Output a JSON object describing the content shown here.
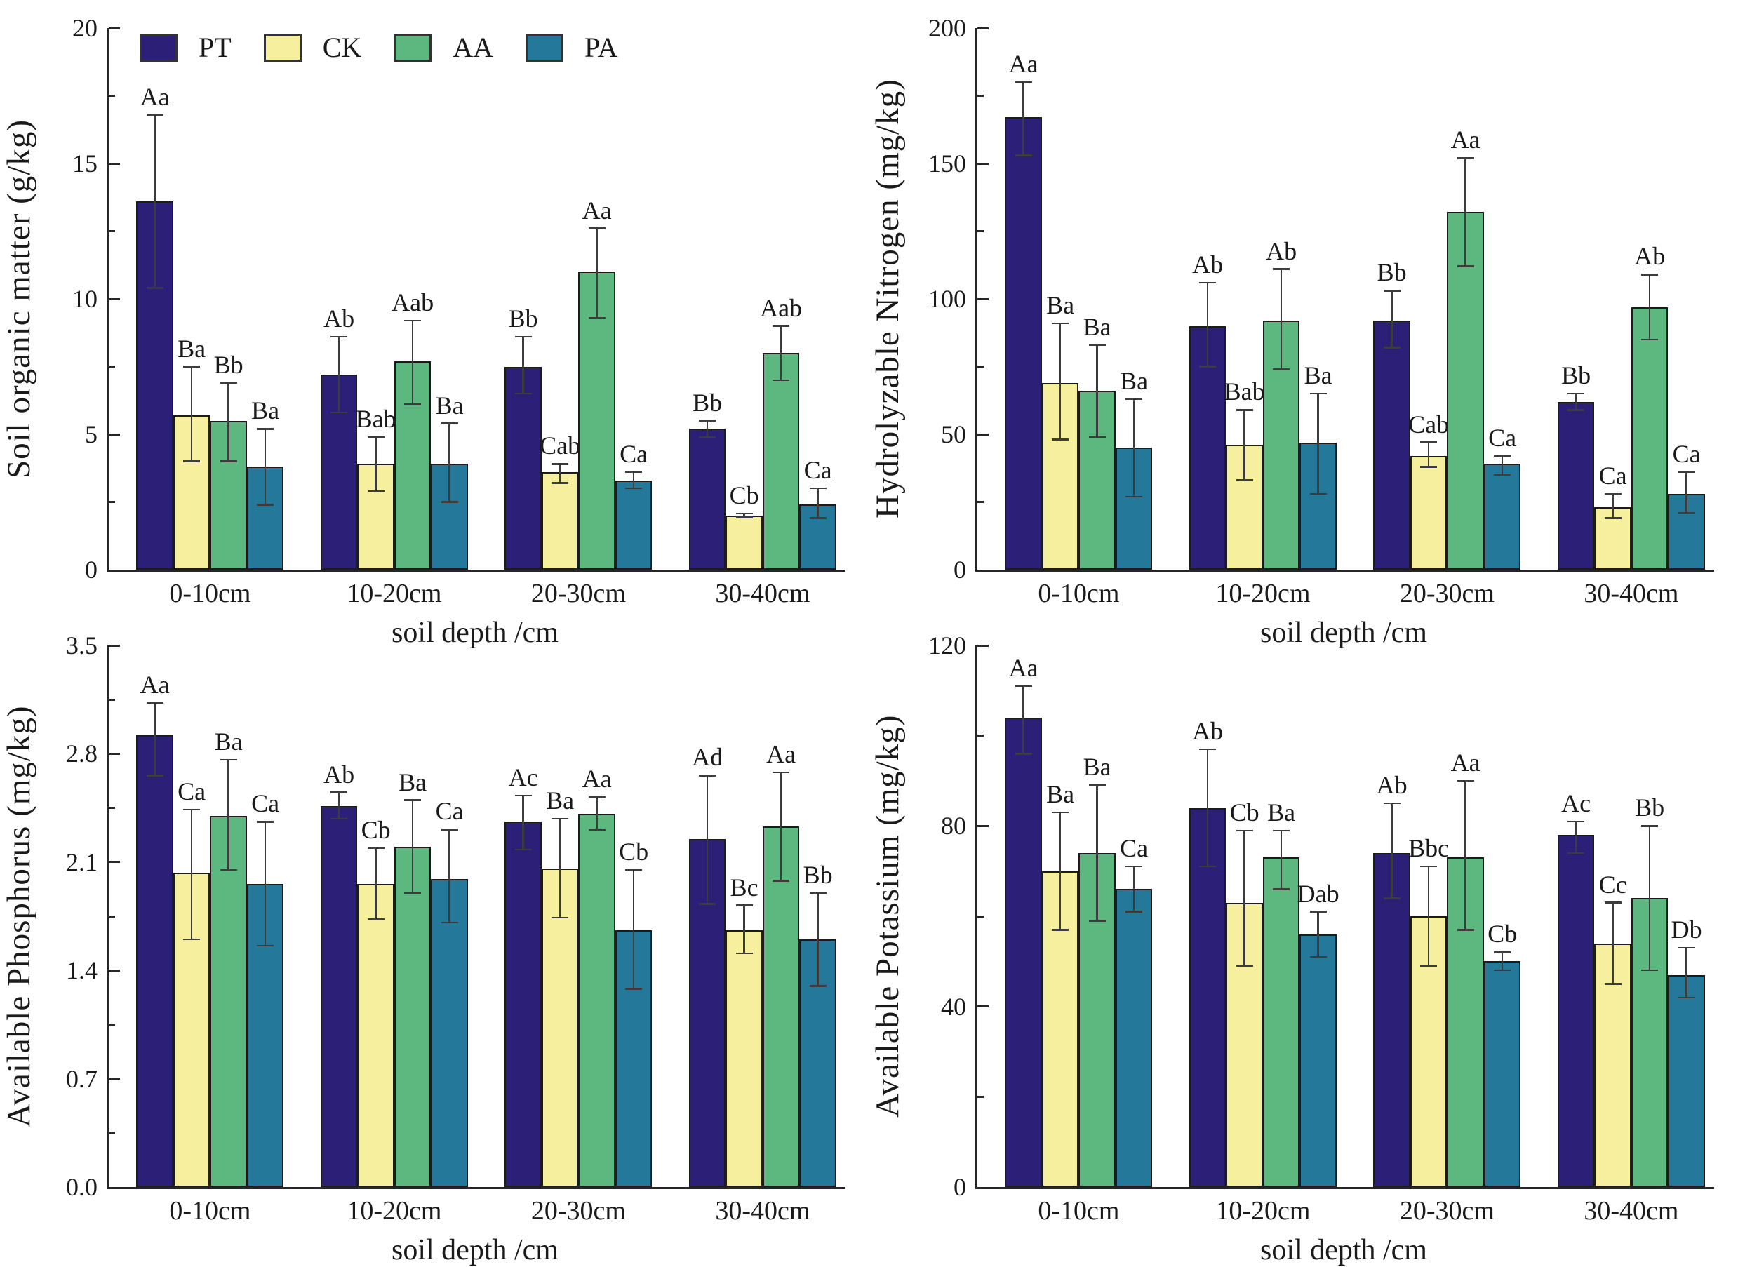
{
  "figure_name": "soil-properties-four-panel-bar-figure",
  "x_axis_title": "soil depth /cm",
  "categories": [
    "0-10cm",
    "10-20cm",
    "20-30cm",
    "30-40cm"
  ],
  "legend": {
    "position": "top-left-of-first-panel",
    "entries": [
      {
        "label": "PT",
        "color": "#2c1f77"
      },
      {
        "label": "CK",
        "color": "#f5ef9e"
      },
      {
        "label": "AA",
        "color": "#5cb87f"
      },
      {
        "label": "PA",
        "color": "#24799a"
      }
    ]
  },
  "chart_data": [
    {
      "type": "bar",
      "ylabel": "Soil organic matter (g/kg)",
      "xlabel": "soil depth /cm",
      "ylim": [
        0,
        20
      ],
      "yticks": [
        "0",
        "5",
        "10",
        "15",
        "20"
      ],
      "ytick_values": [
        0,
        5,
        10,
        15,
        20
      ],
      "grid": false,
      "show_legend": true,
      "categories": [
        "0-10cm",
        "10-20cm",
        "20-30cm",
        "30-40cm"
      ],
      "series": [
        {
          "name": "PT",
          "color": "#2c1f77",
          "values": [
            13.6,
            7.2,
            7.5,
            5.2
          ],
          "err_lo": [
            10.4,
            5.8,
            6.5,
            4.9
          ],
          "err_hi": [
            16.8,
            8.6,
            8.6,
            5.5
          ],
          "sig": [
            "Aa",
            "Ab",
            "Bb",
            "Bb"
          ]
        },
        {
          "name": "CK",
          "color": "#f5ef9e",
          "values": [
            5.7,
            3.9,
            3.6,
            2.0
          ],
          "err_lo": [
            4.0,
            2.9,
            3.2,
            1.93
          ],
          "err_hi": [
            7.5,
            4.9,
            3.9,
            2.07
          ],
          "sig": [
            "Ba",
            "Bab",
            "Cab",
            "Cb"
          ]
        },
        {
          "name": "AA",
          "color": "#5cb87f",
          "values": [
            5.5,
            7.7,
            11.0,
            8.0
          ],
          "err_lo": [
            4.0,
            6.1,
            9.3,
            7.0
          ],
          "err_hi": [
            6.9,
            9.2,
            12.6,
            9.0
          ],
          "sig": [
            "Bb",
            "Aab",
            "Aa",
            "Aab"
          ]
        },
        {
          "name": "PA",
          "color": "#24799a",
          "values": [
            3.8,
            3.9,
            3.3,
            2.4
          ],
          "err_lo": [
            2.4,
            2.5,
            3.0,
            1.9
          ],
          "err_hi": [
            5.2,
            5.4,
            3.6,
            3.0
          ],
          "sig": [
            "Ba",
            "Ba",
            "Ca",
            "Ca"
          ]
        }
      ]
    },
    {
      "type": "bar",
      "ylabel": "Hydrolyzable Nitrogen (mg/kg)",
      "xlabel": "soil depth /cm",
      "ylim": [
        0,
        200
      ],
      "yticks": [
        "0",
        "50",
        "100",
        "150",
        "200"
      ],
      "ytick_values": [
        0,
        50,
        100,
        150,
        200
      ],
      "grid": false,
      "show_legend": false,
      "categories": [
        "0-10cm",
        "10-20cm",
        "20-30cm",
        "30-40cm"
      ],
      "series": [
        {
          "name": "PT",
          "color": "#2c1f77",
          "values": [
            167,
            90,
            92,
            62
          ],
          "err_lo": [
            153,
            75,
            82,
            59
          ],
          "err_hi": [
            180,
            106,
            103,
            65
          ],
          "sig": [
            "Aa",
            "Ab",
            "Bb",
            "Bb"
          ]
        },
        {
          "name": "CK",
          "color": "#f5ef9e",
          "values": [
            69,
            46,
            42,
            23
          ],
          "err_lo": [
            48,
            33,
            38,
            19
          ],
          "err_hi": [
            91,
            59,
            47,
            28
          ],
          "sig": [
            "Ba",
            "Bab",
            "Cab",
            "Ca"
          ]
        },
        {
          "name": "AA",
          "color": "#5cb87f",
          "values": [
            66,
            92,
            132,
            97
          ],
          "err_lo": [
            49,
            74,
            112,
            85
          ],
          "err_hi": [
            83,
            111,
            152,
            109
          ],
          "sig": [
            "Ba",
            "Ab",
            "Aa",
            "Ab"
          ]
        },
        {
          "name": "PA",
          "color": "#24799a",
          "values": [
            45,
            47,
            39,
            28
          ],
          "err_lo": [
            27,
            28,
            35,
            21
          ],
          "err_hi": [
            63,
            65,
            42,
            36
          ],
          "sig": [
            "Ba",
            "Ba",
            "Ca",
            "Ca"
          ]
        }
      ]
    },
    {
      "type": "bar",
      "ylabel": "Available Phosphorus (mg/kg)",
      "xlabel": "soil depth /cm",
      "ylim": [
        0,
        3.5
      ],
      "yticks": [
        "0.0",
        "0.7",
        "1.4",
        "2.1",
        "2.8",
        "3.5"
      ],
      "ytick_values": [
        0,
        0.7,
        1.4,
        2.1,
        2.8,
        3.5
      ],
      "grid": false,
      "show_legend": false,
      "categories": [
        "0-10cm",
        "10-20cm",
        "20-30cm",
        "30-40cm"
      ],
      "series": [
        {
          "name": "PT",
          "color": "#2c1f77",
          "values": [
            2.92,
            2.46,
            2.36,
            2.25
          ],
          "err_lo": [
            2.66,
            2.38,
            2.18,
            1.83
          ],
          "err_hi": [
            3.13,
            2.55,
            2.53,
            2.66
          ],
          "sig": [
            "Aa",
            "Ab",
            "Ac",
            "Ad"
          ]
        },
        {
          "name": "CK",
          "color": "#f5ef9e",
          "values": [
            2.03,
            1.96,
            2.06,
            1.66
          ],
          "err_lo": [
            1.6,
            1.73,
            1.74,
            1.51
          ],
          "err_hi": [
            2.44,
            2.19,
            2.38,
            1.82
          ],
          "sig": [
            "Ca",
            "Cb",
            "Ba",
            "Bc"
          ]
        },
        {
          "name": "AA",
          "color": "#5cb87f",
          "values": [
            2.4,
            2.2,
            2.41,
            2.33
          ],
          "err_lo": [
            2.05,
            1.9,
            2.31,
            1.98
          ],
          "err_hi": [
            2.76,
            2.5,
            2.52,
            2.68
          ],
          "sig": [
            "Ba",
            "Ba",
            "Aa",
            "Aa"
          ]
        },
        {
          "name": "PA",
          "color": "#24799a",
          "values": [
            1.96,
            1.99,
            1.66,
            1.6
          ],
          "err_lo": [
            1.56,
            1.71,
            1.28,
            1.3
          ],
          "err_hi": [
            2.36,
            2.31,
            2.05,
            1.9
          ],
          "sig": [
            "Ca",
            "Ca",
            "Cb",
            "Bb"
          ]
        }
      ]
    },
    {
      "type": "bar",
      "ylabel": "Available Potassium (mg/kg)",
      "xlabel": "soil depth /cm",
      "ylim": [
        0,
        120
      ],
      "yticks": [
        "0",
        "40",
        "80",
        "120"
      ],
      "ytick_values": [
        0,
        40,
        80,
        120
      ],
      "grid": false,
      "show_legend": false,
      "categories": [
        "0-10cm",
        "10-20cm",
        "20-30cm",
        "30-40cm"
      ],
      "series": [
        {
          "name": "PT",
          "color": "#2c1f77",
          "values": [
            104,
            84,
            74,
            78
          ],
          "err_lo": [
            96,
            71,
            64,
            74
          ],
          "err_hi": [
            111,
            97,
            85,
            81
          ],
          "sig": [
            "Aa",
            "Ab",
            "Ab",
            "Ac"
          ]
        },
        {
          "name": "CK",
          "color": "#f5ef9e",
          "values": [
            70,
            63,
            60,
            54
          ],
          "err_lo": [
            57,
            49,
            49,
            45
          ],
          "err_hi": [
            83,
            79,
            71,
            63
          ],
          "sig": [
            "Ba",
            "Cb",
            "Bbc",
            "Cc"
          ]
        },
        {
          "name": "AA",
          "color": "#5cb87f",
          "values": [
            74,
            73,
            73,
            64
          ],
          "err_lo": [
            59,
            66,
            57,
            48
          ],
          "err_hi": [
            89,
            79,
            90,
            80
          ],
          "sig": [
            "Ba",
            "Ba",
            "Aa",
            "Bb"
          ]
        },
        {
          "name": "PA",
          "color": "#24799a",
          "values": [
            66,
            56,
            50,
            47
          ],
          "err_lo": [
            61,
            51,
            48,
            42
          ],
          "err_hi": [
            71,
            61,
            52,
            53
          ],
          "sig": [
            "Ca",
            "Dab",
            "Cb",
            "Db"
          ]
        }
      ]
    }
  ]
}
